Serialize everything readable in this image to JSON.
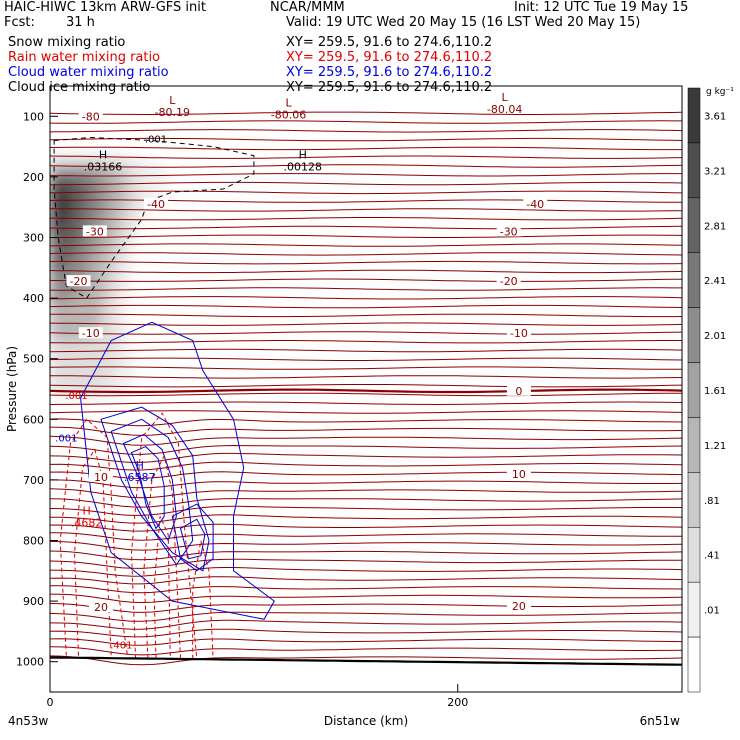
{
  "header": {
    "left_title": "HAIC-HIWC 13km ARW-GFS init",
    "source": "NCAR/MMM",
    "init": "Init: 12 UTC Tue 19 May 15",
    "fcst_label": "Fcst:",
    "fcst_value": "31 h",
    "valid": "Valid: 19 UTC Wed 20 May 15 (16 LST Wed 20 May 15)"
  },
  "fields": [
    {
      "name": "Snow mixing ratio",
      "xy": "XY= 259.5, 91.6 to 274.6,110.2",
      "color": "#000000"
    },
    {
      "name": "Rain water mixing ratio",
      "xy": "XY= 259.5, 91.6 to 274.6,110.2",
      "color": "#e00000"
    },
    {
      "name": "Cloud water mixing ratio",
      "xy": "XY= 259.5, 91.6 to 274.6,110.2",
      "color": "#0000e0"
    },
    {
      "name": "Cloud ice mixing ratio",
      "xy": "XY= 259.5, 91.6 to 274.6,110.2",
      "color": "#000000"
    }
  ],
  "chart_data": {
    "type": "cross-section",
    "ylabel": "Pressure (hPa)",
    "xlabel": "Distance (km)",
    "y_ticks": [
      100,
      200,
      300,
      400,
      500,
      600,
      700,
      800,
      900,
      1000
    ],
    "ylim": [
      1050,
      50
    ],
    "y_scale": "linear",
    "x_ticks": [
      0,
      200
    ],
    "xlim": [
      0,
      310
    ],
    "x_left_label": "4n53w",
    "x_right_label": "6n51w",
    "colorbar": {
      "unit": "g kg⁻¹",
      "ticks": [
        "3.61",
        "3.21",
        "2.81",
        "2.41",
        "2.01",
        "1.61",
        "1.21",
        ".81",
        ".41",
        ".01"
      ],
      "colors": [
        "#3a3a3a",
        "#4e4e4e",
        "#636363",
        "#787878",
        "#8d8d8d",
        "#a2a2a2",
        "#b6b6b6",
        "#cacaca",
        "#dedede",
        "#f0f0f0",
        "#ffffff"
      ]
    },
    "temperature_labels": [
      {
        "text": "-80",
        "x": 20,
        "p": 100
      },
      {
        "text": "-40",
        "x": 52,
        "p": 245
      },
      {
        "text": "-30",
        "x": 22,
        "p": 290
      },
      {
        "text": "-20",
        "x": 14,
        "p": 372
      },
      {
        "text": "-10",
        "x": 20,
        "p": 458
      },
      {
        "text": "-40",
        "x": 238,
        "p": 245
      },
      {
        "text": "-30",
        "x": 225,
        "p": 290
      },
      {
        "text": "-20",
        "x": 225,
        "p": 372
      },
      {
        "text": "-10",
        "x": 230,
        "p": 458
      },
      {
        "text": "0",
        "x": 230,
        "p": 553
      },
      {
        "text": "10",
        "x": 230,
        "p": 690
      },
      {
        "text": "20",
        "x": 230,
        "p": 908
      },
      {
        "text": "10",
        "x": 25,
        "p": 695
      },
      {
        "text": "20",
        "x": 25,
        "p": 910
      }
    ],
    "extrema": [
      {
        "kind": "L",
        "value": "-80.19",
        "x": 60,
        "p": 93,
        "color": "#8b0000"
      },
      {
        "kind": "L",
        "value": "-80.06",
        "x": 117,
        "p": 97,
        "color": "#8b0000"
      },
      {
        "kind": "L",
        "value": "-80.04",
        "x": 223,
        "p": 88,
        "color": "#8b0000"
      },
      {
        "kind": "H",
        "value": ".03166",
        "x": 26,
        "p": 183,
        "color": "#000000"
      },
      {
        "kind": "H",
        "value": ".00128",
        "x": 124,
        "p": 183,
        "color": "#000000"
      },
      {
        "kind": "H",
        "value": ".6587",
        "x": 44,
        "p": 695,
        "color": "#0000e0"
      },
      {
        "kind": "H",
        "value": ".4682",
        "x": 18,
        "p": 770,
        "color": "#e00000"
      }
    ],
    "contour_labels": [
      {
        "text": ".001",
        "x": 52,
        "p": 137,
        "color": "#000000"
      },
      {
        "text": ".001",
        "x": 13,
        "p": 560,
        "color": "#e00000"
      },
      {
        "text": ".001",
        "x": 8,
        "p": 630,
        "color": "#0000e0"
      },
      {
        "text": ".401",
        "x": 35,
        "p": 972,
        "color": "#e00000"
      }
    ]
  }
}
